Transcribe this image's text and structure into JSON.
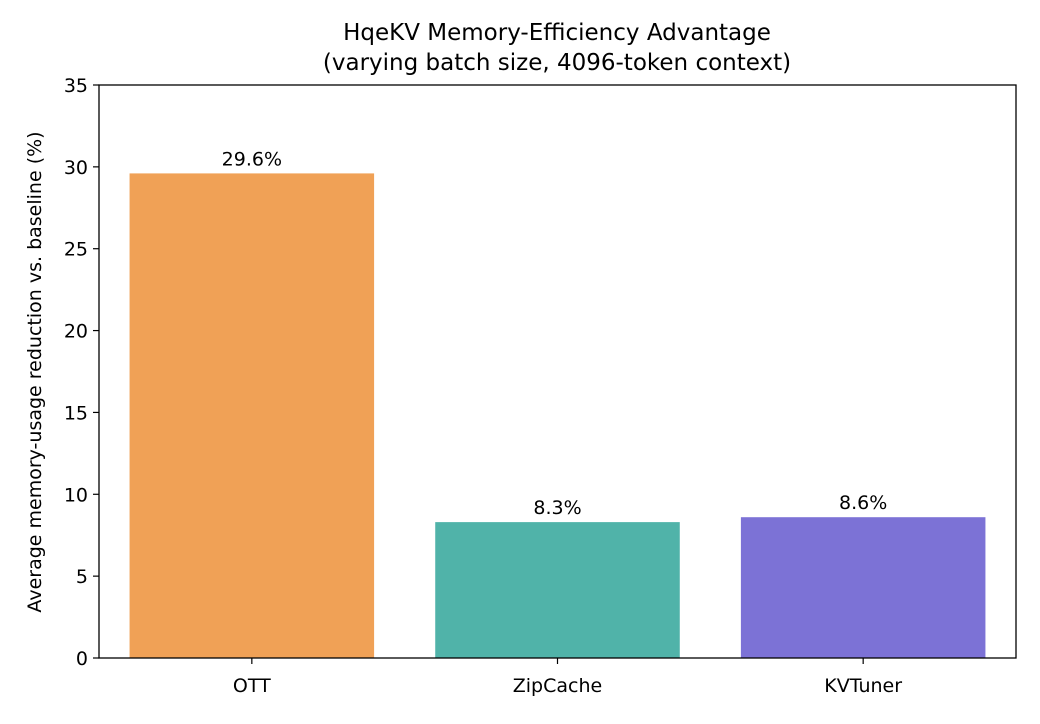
{
  "chart_data": {
    "type": "bar",
    "title_line1": "HqeKV Memory-Efficiency Advantage",
    "title_line2": "(varying batch size, 4096-token context)",
    "xlabel": "",
    "ylabel": "Average memory-usage reduction vs. baseline (%)",
    "ylim": [
      0,
      35
    ],
    "yticks": [
      0,
      5,
      10,
      15,
      20,
      25,
      30,
      35
    ],
    "categories": [
      "OTT",
      "ZipCache",
      "KVTuner"
    ],
    "values": [
      29.6,
      8.3,
      8.6
    ],
    "value_labels": [
      "29.6%",
      "8.3%",
      "8.6%"
    ],
    "colors": [
      "#F0A156",
      "#50B3A9",
      "#7C72D6"
    ],
    "grid": false,
    "legend": "none"
  }
}
